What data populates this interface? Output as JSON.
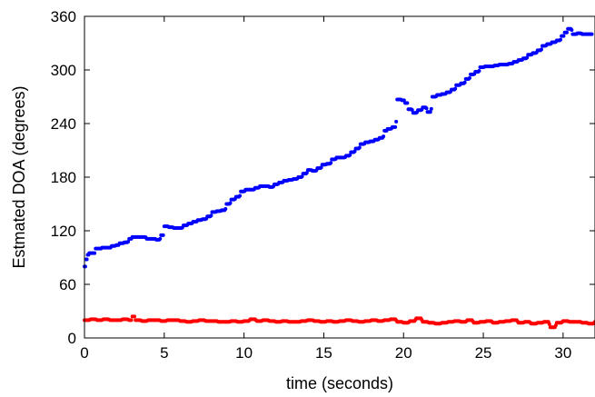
{
  "chart_data": {
    "type": "scatter",
    "title": "",
    "xlabel": "time (seconds)",
    "ylabel": "Estmated DOA (degrees)",
    "xlim": [
      0,
      32
    ],
    "ylim": [
      0,
      360
    ],
    "xticks": [
      0,
      5,
      10,
      15,
      20,
      25,
      30
    ],
    "yticks": [
      0,
      60,
      120,
      180,
      240,
      300,
      360
    ],
    "xtick_labels": [
      "0",
      "5",
      "10",
      "15",
      "20",
      "25",
      "30"
    ],
    "ytick_labels": [
      "0",
      "60",
      "120",
      "180",
      "240",
      "300",
      "360"
    ],
    "grid": false,
    "legend": "none",
    "series": [
      {
        "color": "#0000ff",
        "x": [
          0.0,
          0.1,
          0.2,
          0.3,
          0.5,
          0.7,
          0.9,
          1.1,
          1.3,
          1.5,
          1.7,
          2.0,
          2.2,
          2.5,
          2.8,
          3.0,
          3.3,
          3.6,
          3.9,
          4.2,
          4.5,
          4.8,
          5.0,
          5.3,
          5.6,
          5.9,
          6.2,
          6.5,
          6.8,
          7.1,
          7.4,
          7.7,
          8.0,
          8.3,
          8.6,
          8.9,
          9.2,
          9.5,
          9.8,
          10.1,
          10.4,
          10.7,
          11.0,
          11.3,
          11.6,
          11.9,
          12.2,
          12.5,
          12.8,
          13.1,
          13.4,
          13.7,
          14.0,
          14.3,
          14.6,
          14.9,
          15.2,
          15.5,
          15.8,
          16.1,
          16.4,
          16.7,
          17.0,
          17.3,
          17.6,
          17.9,
          18.2,
          18.5,
          18.8,
          19.0,
          19.3,
          19.6,
          19.9,
          20.1,
          20.3,
          20.6,
          20.9,
          21.2,
          21.5,
          21.8,
          22.1,
          22.4,
          22.7,
          23.0,
          23.3,
          23.6,
          23.9,
          24.2,
          24.5,
          24.8,
          25.1,
          25.4,
          25.7,
          26.0,
          26.3,
          26.6,
          26.9,
          27.2,
          27.5,
          27.8,
          28.1,
          28.4,
          28.7,
          29.0,
          29.3,
          29.6,
          29.9,
          30.1,
          30.3,
          30.6,
          30.9,
          31.2,
          31.5,
          31.8
        ],
        "y": [
          80,
          88,
          93,
          95,
          95,
          100,
          100,
          101,
          101,
          101,
          103,
          104,
          106,
          107,
          111,
          113,
          113,
          113,
          111,
          111,
          110,
          115,
          125,
          124,
          123,
          123,
          126,
          128,
          130,
          132,
          133,
          136,
          141,
          142,
          143,
          150,
          155,
          158,
          164,
          166,
          166,
          168,
          170,
          170,
          169,
          172,
          174,
          176,
          177,
          178,
          180,
          184,
          188,
          187,
          190,
          194,
          195,
          200,
          202,
          202,
          204,
          208,
          212,
          217,
          219,
          220,
          222,
          224,
          232,
          234,
          236,
          267,
          266,
          263,
          256,
          252,
          255,
          258,
          253,
          270,
          272,
          273,
          275,
          278,
          283,
          285,
          290,
          295,
          298,
          303,
          304,
          304,
          305,
          306,
          306,
          307,
          309,
          311,
          313,
          317,
          319,
          322,
          327,
          329,
          331,
          333,
          338,
          342,
          346,
          340,
          341,
          340,
          340,
          340
        ]
      },
      {
        "color": "#ff0000",
        "x": [
          0.0,
          0.4,
          0.8,
          1.2,
          1.6,
          2.0,
          2.4,
          2.8,
          3.0,
          3.2,
          3.6,
          4.0,
          4.4,
          4.8,
          5.2,
          5.6,
          6.0,
          6.4,
          6.8,
          7.2,
          7.6,
          8.0,
          8.4,
          8.8,
          9.2,
          9.6,
          10.0,
          10.4,
          10.8,
          11.2,
          11.6,
          12.0,
          12.4,
          12.8,
          13.2,
          13.6,
          14.0,
          14.4,
          14.8,
          15.2,
          15.6,
          16.0,
          16.4,
          16.8,
          17.2,
          17.6,
          18.0,
          18.4,
          18.8,
          19.2,
          19.6,
          20.0,
          20.4,
          20.8,
          21.2,
          21.6,
          22.0,
          22.4,
          22.8,
          23.2,
          23.6,
          24.0,
          24.4,
          24.8,
          25.2,
          25.6,
          26.0,
          26.4,
          26.8,
          27.2,
          27.6,
          28.0,
          28.4,
          28.8,
          29.2,
          29.6,
          30.0,
          30.4,
          30.8,
          31.2,
          31.6,
          32.0
        ],
        "y": [
          20,
          21,
          20,
          21,
          20,
          20,
          21,
          20,
          24,
          20,
          19,
          20,
          20,
          19,
          20,
          20,
          19,
          18,
          19,
          20,
          19,
          19,
          18,
          18,
          19,
          18,
          19,
          21,
          19,
          20,
          19,
          18,
          19,
          18,
          18,
          19,
          20,
          19,
          18,
          19,
          18,
          19,
          20,
          19,
          18,
          19,
          20,
          19,
          20,
          21,
          18,
          17,
          19,
          22,
          18,
          17,
          16,
          17,
          18,
          19,
          18,
          20,
          17,
          18,
          19,
          17,
          18,
          19,
          20,
          17,
          18,
          16,
          17,
          18,
          12,
          17,
          19,
          18,
          18,
          17,
          16,
          18
        ]
      }
    ]
  }
}
